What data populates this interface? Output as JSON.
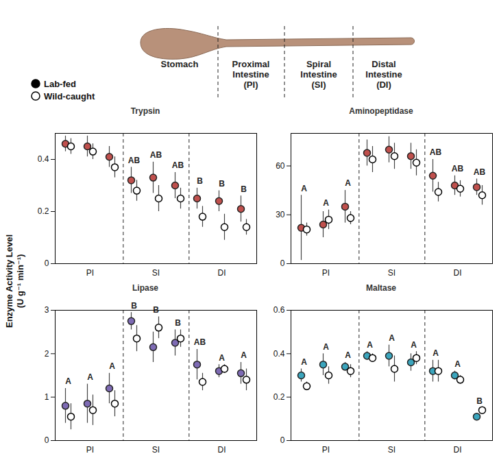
{
  "figure": {
    "sections": [
      "Stomach",
      "Proximal Intestine (PI)",
      "Spiral Intestine (SI)",
      "Distal Intestine (DI)"
    ],
    "ylabel": "Enzyme Activity Level",
    "yunits": "(U g⁻¹ min⁻¹)",
    "legend": "top-left"
  },
  "chart_data": [
    {
      "type": "scatter",
      "title": "Trypsin",
      "categories": [
        null,
        "PI",
        null,
        null,
        "SI",
        null,
        null,
        "DI",
        null
      ],
      "ylim": [
        0,
        0.5
      ],
      "yticks": [
        0,
        0.2,
        0.4
      ],
      "group_letters": [
        null,
        null,
        null,
        "AB",
        "AB",
        "AB",
        "B",
        "B",
        "B"
      ],
      "series": [
        {
          "name": "Lab-fed",
          "color": "#c0504d",
          "marker": "filled",
          "values": [
            0.46,
            0.45,
            0.41,
            0.32,
            0.33,
            0.3,
            0.25,
            0.24,
            0.21
          ],
          "errors": [
            0.03,
            0.04,
            0.04,
            0.05,
            0.06,
            0.05,
            0.04,
            0.04,
            0.05
          ]
        },
        {
          "name": "Wild-caught",
          "color": "#000000",
          "marker": "open",
          "values": [
            0.45,
            0.43,
            0.37,
            0.28,
            0.25,
            0.25,
            0.18,
            0.14,
            0.14
          ],
          "errors": [
            0.03,
            0.03,
            0.04,
            0.04,
            0.05,
            0.04,
            0.04,
            0.05,
            0.03
          ]
        }
      ]
    },
    {
      "type": "scatter",
      "title": "Aminopeptidase",
      "categories": [
        null,
        "PI",
        null,
        null,
        "SI",
        null,
        null,
        "DI",
        null
      ],
      "ylim": [
        0,
        80
      ],
      "yticks": [
        0,
        30,
        60
      ],
      "group_letters": [
        "A",
        "A",
        "A",
        null,
        null,
        null,
        "AB",
        "AB",
        "AB"
      ],
      "series": [
        {
          "name": "Lab-fed",
          "color": "#c0504d",
          "marker": "filled",
          "values": [
            22,
            24,
            35,
            68,
            70,
            66,
            54,
            48,
            47
          ],
          "errors": [
            20,
            8,
            10,
            8,
            8,
            8,
            10,
            6,
            5
          ]
        },
        {
          "name": "Wild-caught",
          "color": "#000000",
          "marker": "open",
          "values": [
            21,
            27,
            28,
            64,
            66,
            62,
            44,
            46,
            42
          ],
          "errors": [
            4,
            6,
            4,
            8,
            8,
            8,
            6,
            5,
            6
          ]
        }
      ]
    },
    {
      "type": "scatter",
      "title": "Lipase",
      "categories": [
        null,
        "PI",
        null,
        null,
        "SI",
        null,
        null,
        "DI",
        null
      ],
      "ylim": [
        0,
        3
      ],
      "yticks": [
        0,
        1,
        2,
        3
      ],
      "group_letters": [
        "A",
        "A",
        "A",
        "B",
        "B",
        "B",
        "AB",
        "A",
        "A"
      ],
      "series": [
        {
          "name": "Lab-fed",
          "color": "#7e6bb4",
          "marker": "filled",
          "values": [
            0.8,
            0.85,
            1.2,
            2.75,
            2.15,
            2.25,
            1.75,
            1.6,
            1.55
          ],
          "errors": [
            0.4,
            0.45,
            0.35,
            0.2,
            0.35,
            0.3,
            0.35,
            0.15,
            0.25
          ]
        },
        {
          "name": "Wild-caught",
          "color": "#000000",
          "marker": "open",
          "values": [
            0.55,
            0.7,
            0.85,
            2.35,
            2.6,
            2.35,
            1.35,
            1.65,
            1.4
          ],
          "errors": [
            0.3,
            0.35,
            0.3,
            0.3,
            0.25,
            0.2,
            0.2,
            0.1,
            0.25
          ]
        }
      ]
    },
    {
      "type": "scatter",
      "title": "Maltase",
      "categories": [
        null,
        "PI",
        null,
        null,
        "SI",
        null,
        null,
        "DI",
        null
      ],
      "ylim": [
        0,
        0.6
      ],
      "yticks": [
        0,
        0.2,
        0.4,
        0.6
      ],
      "group_letters": [
        "A",
        "A",
        "A",
        "A",
        "A",
        "A",
        "A",
        "A",
        "B"
      ],
      "series": [
        {
          "name": "Lab-fed",
          "color": "#3ba5bd",
          "marker": "filled",
          "values": [
            0.3,
            0.35,
            0.34,
            0.39,
            0.39,
            0.36,
            0.32,
            0.3,
            0.11
          ],
          "errors": [
            0.03,
            0.05,
            0.02,
            0.02,
            0.05,
            0.04,
            0.05,
            0.02,
            0.01
          ]
        },
        {
          "name": "Wild-caught",
          "color": "#000000",
          "marker": "open",
          "values": [
            0.25,
            0.3,
            0.32,
            0.38,
            0.33,
            0.38,
            0.32,
            0.28,
            0.14
          ],
          "errors": [
            0.02,
            0.04,
            0.03,
            0.02,
            0.06,
            0.03,
            0.05,
            0.02,
            0.01
          ]
        }
      ]
    }
  ]
}
